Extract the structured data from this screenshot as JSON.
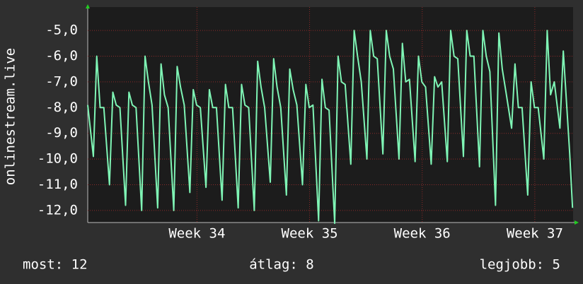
{
  "chart_data": {
    "type": "line",
    "ylabel": "onlinestream.live",
    "color": "#7ff5b5",
    "grid": true,
    "x": [
      33.03,
      33.08,
      33.11,
      33.14,
      33.173,
      33.223,
      33.253,
      33.283,
      33.316,
      33.366,
      33.396,
      33.426,
      33.459,
      33.509,
      33.539,
      33.569,
      33.601,
      33.651,
      33.681,
      33.711,
      33.744,
      33.794,
      33.824,
      33.854,
      33.887,
      33.937,
      33.967,
      33.997,
      34.03,
      34.08,
      34.11,
      34.14,
      34.173,
      34.223,
      34.253,
      34.283,
      34.316,
      34.366,
      34.396,
      34.426,
      34.459,
      34.509,
      34.539,
      34.569,
      34.601,
      34.651,
      34.681,
      34.711,
      34.744,
      34.794,
      34.824,
      34.854,
      34.887,
      34.937,
      34.967,
      34.997,
      35.03,
      35.08,
      35.11,
      35.14,
      35.173,
      35.223,
      35.253,
      35.283,
      35.316,
      35.366,
      35.396,
      35.426,
      35.459,
      35.509,
      35.539,
      35.569,
      35.601,
      35.651,
      35.681,
      35.711,
      35.744,
      35.794,
      35.824,
      35.854,
      35.887,
      35.937,
      35.967,
      35.997,
      36.03,
      36.08,
      36.11,
      36.14,
      36.173,
      36.223,
      36.253,
      36.283,
      36.316,
      36.366,
      36.396,
      36.426,
      36.459,
      36.509,
      36.539,
      36.569,
      36.601,
      36.651,
      36.681,
      36.711,
      36.744,
      36.794,
      36.824,
      36.854,
      36.887,
      36.937,
      36.967,
      36.997,
      37.03,
      37.08,
      37.11,
      37.14,
      37.173,
      37.223,
      37.253,
      37.283,
      37.31,
      37.335
    ],
    "values": [
      -7.9,
      -9.9,
      -6.0,
      -8.0,
      -8.0,
      -11.0,
      -7.4,
      -7.9,
      -8.0,
      -11.8,
      -7.4,
      -7.9,
      -8.0,
      -12.0,
      -6.0,
      -7.0,
      -7.9,
      -11.9,
      -6.3,
      -7.5,
      -8.0,
      -12.0,
      -6.4,
      -7.2,
      -7.9,
      -11.3,
      -7.3,
      -7.9,
      -8.0,
      -11.1,
      -7.3,
      -8.0,
      -8.0,
      -11.6,
      -7.1,
      -8.0,
      -8.0,
      -11.9,
      -7.1,
      -7.9,
      -8.0,
      -12.0,
      -6.2,
      -7.2,
      -8.0,
      -10.9,
      -6.1,
      -7.2,
      -8.0,
      -11.4,
      -6.5,
      -7.3,
      -7.9,
      -11.0,
      -7.1,
      -8.0,
      -7.9,
      -12.4,
      -6.9,
      -8.0,
      -8.1,
      -12.5,
      -6.0,
      -7.0,
      -7.1,
      -10.2,
      -5.0,
      -6.0,
      -7.0,
      -10.0,
      -5.0,
      -6.0,
      -6.1,
      -9.8,
      -5.0,
      -6.0,
      -6.5,
      -10.0,
      -5.5,
      -7.0,
      -6.9,
      -10.1,
      -6.0,
      -7.0,
      -7.2,
      -10.2,
      -6.8,
      -7.2,
      -7.0,
      -10.1,
      -5.0,
      -6.0,
      -6.1,
      -9.9,
      -5.0,
      -6.0,
      -6.0,
      -10.3,
      -5.0,
      -6.0,
      -6.6,
      -11.8,
      -5.1,
      -6.5,
      -7.4,
      -8.8,
      -6.3,
      -8.0,
      -8.0,
      -11.4,
      -7.0,
      -8.0,
      -8.0,
      -10.0,
      -5.0,
      -7.5,
      -7.0,
      -8.8,
      -5.8,
      -7.9,
      -9.8,
      -11.9
    ],
    "xlim": [
      33.03,
      37.34
    ],
    "ylim": [
      -12.47,
      -4.09
    ],
    "xticks": [
      {
        "value": 34,
        "label": "Week 34"
      },
      {
        "value": 35,
        "label": "Week 35"
      },
      {
        "value": 36,
        "label": "Week 36"
      },
      {
        "value": 37,
        "label": "Week 37"
      }
    ],
    "yticks": [
      {
        "value": -5,
        "label": "-5,0"
      },
      {
        "value": -6,
        "label": "-6,0"
      },
      {
        "value": -7,
        "label": "-7,0"
      },
      {
        "value": -8,
        "label": "-8,0"
      },
      {
        "value": -9,
        "label": "-9,0"
      },
      {
        "value": -10,
        "label": "-10,0"
      },
      {
        "value": -11,
        "label": "-11,0"
      },
      {
        "value": -12,
        "label": "-12,0"
      }
    ],
    "footer": [
      "most: 12",
      "átlag: 8",
      "legjobb: 5"
    ]
  }
}
